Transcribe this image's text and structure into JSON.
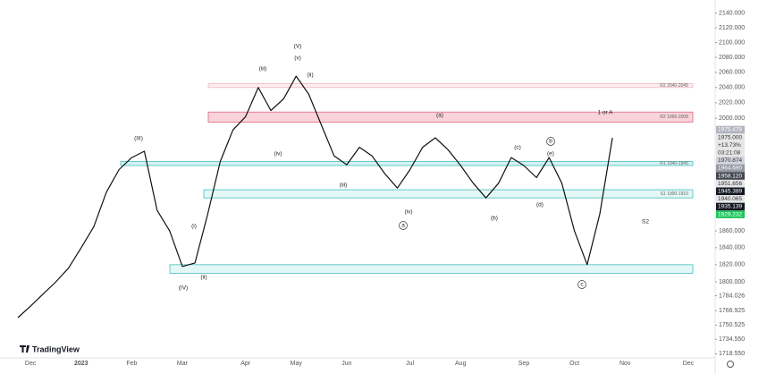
{
  "chart_data": {
    "type": "line",
    "color": "#111111",
    "ylog": true,
    "grid": false,
    "ylim": [
      1714,
      2152
    ],
    "yticks": [
      {
        "value": 2140,
        "label": "2140.000"
      },
      {
        "value": 2120,
        "label": "2120.000"
      },
      {
        "value": 2100,
        "label": "2100.000"
      },
      {
        "value": 2080,
        "label": "2080.000"
      },
      {
        "value": 2060,
        "label": "2060.000"
      },
      {
        "value": 2040,
        "label": "2040.000"
      },
      {
        "value": 2020,
        "label": "2020.000"
      },
      {
        "value": 2000,
        "label": "2000.000"
      },
      {
        "value": 1860,
        "label": "1860.000"
      },
      {
        "value": 1840,
        "label": "1840.000"
      },
      {
        "value": 1820,
        "label": "1820.000"
      },
      {
        "value": 1800,
        "label": "1800.000"
      },
      {
        "value": 1784.026,
        "label": "1784.026"
      },
      {
        "value": 1766.925,
        "label": "1766.925"
      },
      {
        "value": 1750.525,
        "label": "1750.525"
      },
      {
        "value": 1734.55,
        "label": "1734.550"
      },
      {
        "value": 1718.55,
        "label": "1718.550"
      }
    ],
    "categories": [
      null,
      "Dec",
      null,
      null,
      null,
      "2023",
      null,
      null,
      null,
      "Feb",
      null,
      null,
      null,
      "Mar",
      null,
      null,
      null,
      null,
      "Apr",
      null,
      null,
      null,
      "May",
      null,
      null,
      null,
      "Jun",
      null,
      null,
      null,
      null,
      "Jul",
      null,
      null,
      null,
      "Aug",
      null,
      null,
      null,
      null,
      "Sep",
      null,
      null,
      null,
      "Oct",
      null,
      null,
      null,
      "Nov",
      null,
      null,
      null,
      null,
      "Dec",
      null,
      null
    ],
    "values": [
      1759,
      1772,
      1786,
      1800,
      1816,
      1840,
      1865,
      1907,
      1935,
      1950,
      1958,
      1885,
      1860,
      1818,
      1822,
      1880,
      1945,
      1985,
      2002,
      2040,
      2010,
      2025,
      2055,
      2031,
      1991,
      1952,
      1941,
      1963,
      1952,
      1930,
      1912,
      1935,
      1963,
      1975,
      1960,
      1940,
      1918,
      1900,
      1918,
      1950,
      1940,
      1925,
      1950,
      1918,
      1860,
      1820,
      1880,
      1975,
      null,
      null,
      null,
      null,
      null,
      null,
      null,
      null
    ],
    "zones": [
      {
        "label": "R2 2040-2045",
        "low": 2040,
        "high": 2045,
        "color": "#fdeef1",
        "stroke": "#f3b5c0"
      },
      {
        "label": "R2 1995-2008",
        "low": 1995,
        "high": 2008,
        "color": "#f8d3da",
        "stroke": "#e0687d"
      },
      {
        "label": "R1 1940-1945",
        "low": 1940,
        "high": 1945,
        "color": "#d5f2f2",
        "stroke": "#45bdbd"
      },
      {
        "label": "S1 1900-1910",
        "low": 1900,
        "high": 1910,
        "color": "#e3f7f7",
        "stroke": "#45bdbd"
      },
      {
        "low": 1810,
        "high": 1820,
        "color": "#e3f7f7",
        "stroke": "#45bdbd"
      }
    ],
    "annotations": [
      "(III)",
      "(IV)",
      "(V)",
      "(i)",
      "(ii)",
      "(iii)",
      "(iv)",
      "(v)",
      "(ii)",
      "(iii)",
      "(iv)",
      "(a)",
      "(b)",
      "(c)",
      "(d)",
      "(e)",
      "b",
      "a",
      "c",
      "1 or A",
      "S2"
    ],
    "price_tags": [
      "1975.478",
      "1975.000",
      "+13.73%",
      "03:21:08",
      "1970.874",
      "1964.690",
      "1958.120",
      "1951.656",
      "1945.389",
      "1940.065",
      "1935.139",
      "1929.232"
    ],
    "logo": "TradingView"
  }
}
